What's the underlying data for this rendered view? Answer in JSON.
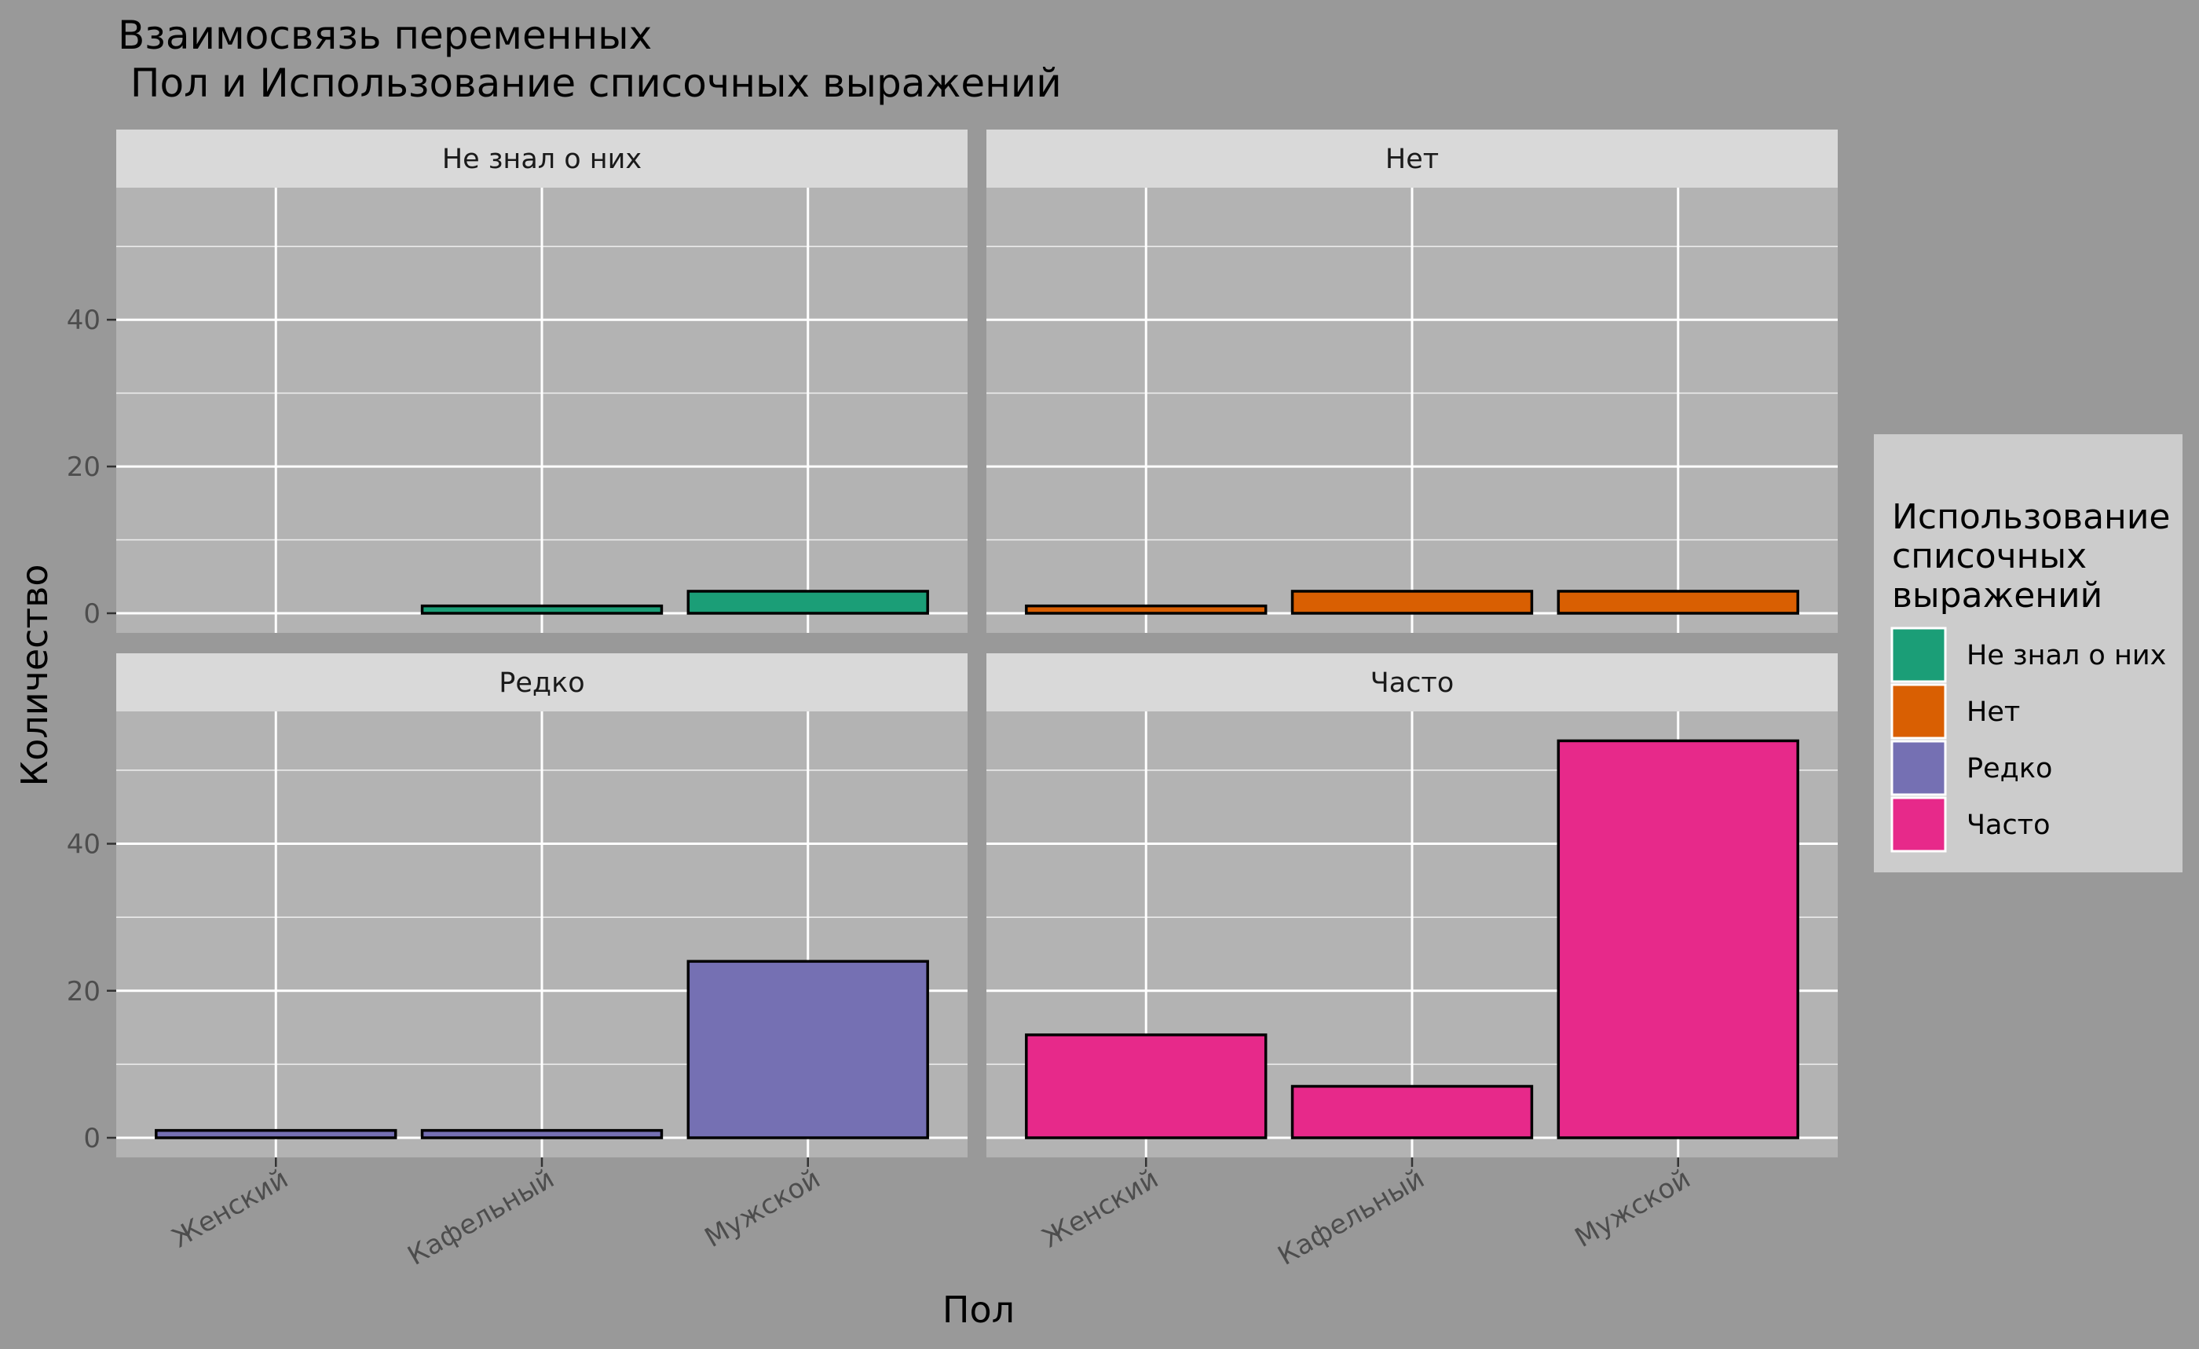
{
  "chart_data": {
    "type": "bar",
    "title_lines": [
      "Взаимосвязь переменных",
      " Пол и Использование списочных выражений"
    ],
    "xlabel": "Пол",
    "ylabel": "Количество",
    "categories": [
      "Женский",
      "Кафельный",
      "Мужской"
    ],
    "ylim": [
      0,
      58
    ],
    "y_ticks": [
      0,
      20,
      40
    ],
    "grid": true,
    "legend_position": "right",
    "legend_title_lines": [
      "Использование",
      "списочных",
      "выражений"
    ],
    "panel_bg": "#b3b3b3",
    "strip_bg": "#d9d9d9",
    "panels": [
      {
        "name": "Не знал о них",
        "color": "#1b9e77",
        "values": [
          0,
          1,
          3
        ]
      },
      {
        "name": "Нет",
        "color": "#d95f02",
        "values": [
          1,
          3,
          3
        ]
      },
      {
        "name": "Редко",
        "color": "#7570b3",
        "values": [
          1,
          1,
          24
        ]
      },
      {
        "name": "Часто",
        "color": "#e7298a",
        "values": [
          14,
          7,
          54
        ]
      }
    ]
  }
}
